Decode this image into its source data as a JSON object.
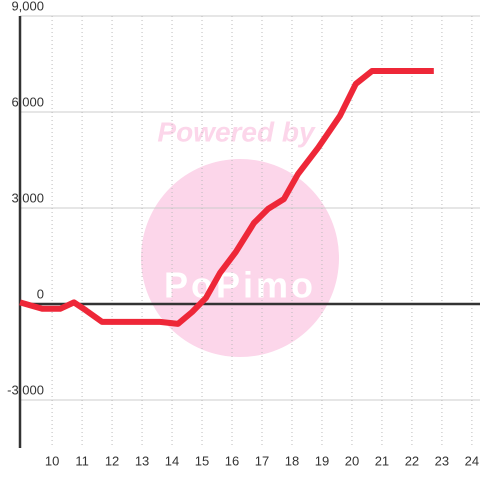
{
  "chart_data": {
    "type": "line",
    "watermark": "Powered by",
    "watermark_logo": "PoPimo",
    "x": [
      8.93,
      9.67,
      10.27,
      10.73,
      11.13,
      11.67,
      13.6,
      14.2,
      14.67,
      15.13,
      15.6,
      16.13,
      16.73,
      17.2,
      17.73,
      18.2,
      18.87,
      19.6,
      20.13,
      20.67,
      22.73
    ],
    "series": [
      {
        "color": "#ee2738",
        "values": [
          50,
          -150,
          -150,
          50,
          -200,
          -560,
          -560,
          -620,
          -250,
          190,
          970,
          1630,
          2530,
          2970,
          3280,
          4060,
          4880,
          5880,
          6880,
          7280,
          7280
        ]
      }
    ],
    "xlim": [
      8.93,
      24.27
    ],
    "xticks": [
      10,
      11,
      12,
      13,
      14,
      15,
      16,
      17,
      18,
      19,
      20,
      21,
      22,
      23,
      24
    ],
    "ylim": [
      -4500,
      9000
    ],
    "yticks": [
      {
        "value": -3000,
        "label": "-3,000"
      },
      0,
      {
        "value": 3000,
        "label": "3,000"
      },
      {
        "value": 6000,
        "label": "6,000"
      },
      {
        "value": 9000,
        "label": "9,000"
      }
    ],
    "grid": true
  }
}
